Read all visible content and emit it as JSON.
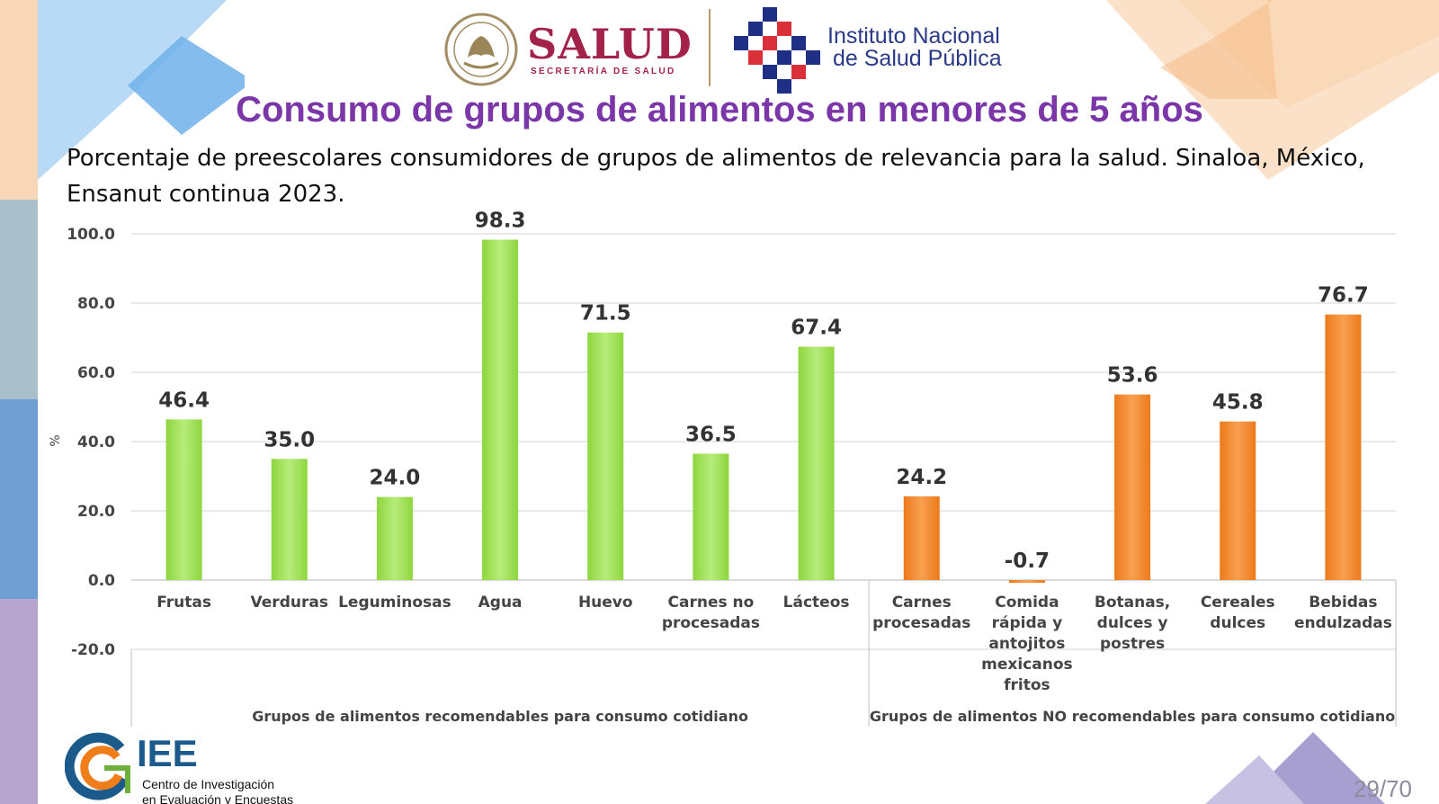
{
  "header": {
    "salud_word": "SALUD",
    "salud_sub": "SECRETARÍA DE SALUD",
    "insp_line1": "Instituto Nacional",
    "insp_line2": "de Salud Pública"
  },
  "title": "Consumo de grupos de alimentos en menores de 5 años",
  "subtitle": "Porcentaje de preescolares consumidores de grupos de alimentos de relevancia para la salud. Sinaloa, México, Ensanut continua 2023.",
  "chart_data": {
    "type": "bar",
    "title": "Consumo de grupos de alimentos en menores de 5 años",
    "ylabel": "%",
    "xlabel": "",
    "ylim": [
      -20,
      100
    ],
    "yticks": [
      "100.0",
      "80.0",
      "60.0",
      "40.0",
      "20.0",
      "0.0",
      "-20.0"
    ],
    "categories": [
      [
        "Frutas"
      ],
      [
        "Verduras"
      ],
      [
        "Leguminosas"
      ],
      [
        "Agua"
      ],
      [
        "Huevo"
      ],
      [
        "Carnes no",
        "procesadas"
      ],
      [
        "Lácteos"
      ],
      [
        "Carnes",
        "procesadas"
      ],
      [
        "Comida",
        "rápida y",
        "antojitos",
        "mexicanos",
        "fritos"
      ],
      [
        "Botanas,",
        "dulces y",
        "postres"
      ],
      [
        "Cereales",
        "dulces"
      ],
      [
        "Bebidas",
        "endulzadas"
      ]
    ],
    "values": [
      46.4,
      35.0,
      24.0,
      98.3,
      71.5,
      36.5,
      67.4,
      24.2,
      -0.7,
      53.6,
      45.8,
      76.7
    ],
    "value_labels": [
      "46.4",
      "35.0",
      "24.0",
      "98.3",
      "71.5",
      "36.5",
      "67.4",
      "24.2",
      "-0.7",
      "53.6",
      "45.8",
      "76.7"
    ],
    "groups": [
      {
        "name": "Grupos de alimentos recomendables para consumo cotidiano",
        "from": 0,
        "to": 6,
        "color": "#92d94a"
      },
      {
        "name": "Grupos de alimentos NO recomendables para consumo cotidiano",
        "from": 7,
        "to": 11,
        "color": "#f08a2c"
      }
    ],
    "grid": true
  },
  "footer": {
    "ciee_word": "IEE",
    "ciee_line1": "Centro de Investigación",
    "ciee_line2": "en Evaluación y Encuestas",
    "page": "29/70"
  },
  "colors": {
    "title": "#7b36a8",
    "salud": "#a3224a",
    "insp": "#2a3a86",
    "green_bar": "#92d94a",
    "orange_bar": "#f08a2c"
  }
}
